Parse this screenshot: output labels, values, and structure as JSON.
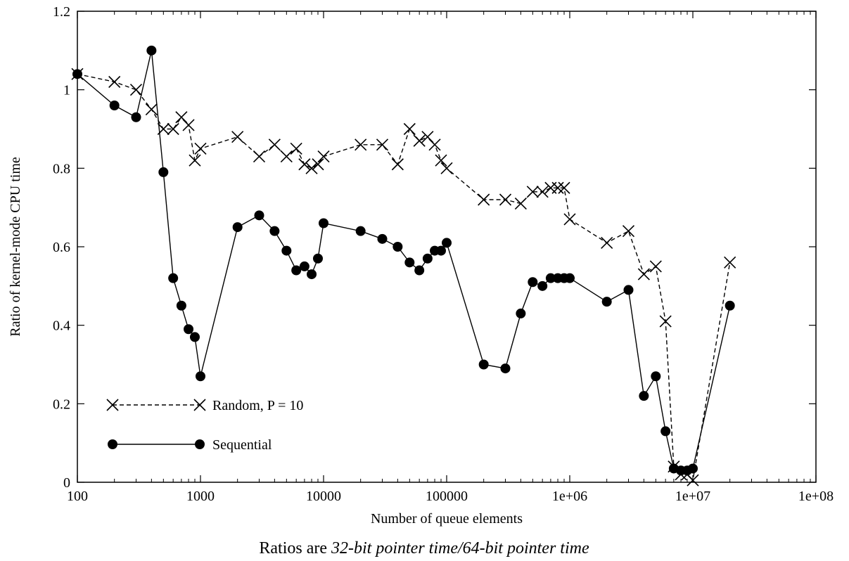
{
  "chart_data": {
    "type": "line",
    "xlabel": "Number of queue elements",
    "ylabel": "Ratio of kernel-mode CPU time",
    "caption_prefix": "Ratios are ",
    "caption_emphasis": "32-bit pointer time/64-bit pointer time",
    "x_scale": "log",
    "xlim": [
      100,
      100000000
    ],
    "ylim": [
      0,
      1.2
    ],
    "x_ticks": [
      100,
      1000,
      10000,
      100000,
      1000000,
      10000000,
      100000000
    ],
    "x_tick_labels": [
      "100",
      "1000",
      "10000",
      "100000",
      "1e+06",
      "1e+07",
      "1e+08"
    ],
    "y_ticks": [
      0,
      0.2,
      0.4,
      0.6,
      0.8,
      1,
      1.2
    ],
    "y_tick_labels": [
      "0",
      "0.2",
      "0.4",
      "0.6",
      "0.8",
      "1",
      "1.2"
    ],
    "grid": false,
    "legend_position": "bottom-left",
    "series": [
      {
        "name": "Random, P = 10",
        "line_style": "dashed",
        "marker": "cross",
        "color": "#000000",
        "x": [
          100,
          200,
          300,
          400,
          500,
          600,
          700,
          800,
          900,
          1000,
          2000,
          3000,
          4000,
          5000,
          6000,
          7000,
          8000,
          9000,
          10000,
          20000,
          30000,
          40000,
          50000,
          60000,
          70000,
          80000,
          90000,
          100000,
          200000,
          300000,
          400000,
          500000,
          600000,
          700000,
          800000,
          900000,
          1000000,
          2000000,
          3000000,
          4000000,
          5000000,
          6000000,
          7000000,
          8000000,
          9000000,
          10000000,
          20000000
        ],
        "y": [
          1.04,
          1.02,
          1.0,
          0.95,
          0.9,
          0.9,
          0.93,
          0.91,
          0.82,
          0.85,
          0.88,
          0.83,
          0.86,
          0.83,
          0.85,
          0.81,
          0.8,
          0.81,
          0.83,
          0.86,
          0.86,
          0.81,
          0.9,
          0.87,
          0.88,
          0.86,
          0.82,
          0.8,
          0.72,
          0.72,
          0.71,
          0.74,
          0.74,
          0.75,
          0.75,
          0.75,
          0.67,
          0.61,
          0.64,
          0.53,
          0.55,
          0.41,
          0.04,
          0.02,
          0.02,
          0.005,
          0.56
        ]
      },
      {
        "name": "Sequential",
        "line_style": "solid",
        "marker": "circle",
        "color": "#000000",
        "x": [
          100,
          200,
          300,
          400,
          500,
          600,
          700,
          800,
          900,
          1000,
          2000,
          3000,
          4000,
          5000,
          6000,
          7000,
          8000,
          9000,
          10000,
          20000,
          30000,
          40000,
          50000,
          60000,
          70000,
          80000,
          90000,
          100000,
          200000,
          300000,
          400000,
          500000,
          600000,
          700000,
          800000,
          900000,
          1000000,
          2000000,
          3000000,
          4000000,
          5000000,
          6000000,
          7000000,
          8000000,
          9000000,
          10000000,
          20000000
        ],
        "y": [
          1.04,
          0.96,
          0.93,
          1.1,
          0.79,
          0.52,
          0.45,
          0.39,
          0.37,
          0.27,
          0.65,
          0.68,
          0.64,
          0.59,
          0.54,
          0.55,
          0.53,
          0.57,
          0.66,
          0.64,
          0.62,
          0.6,
          0.56,
          0.54,
          0.57,
          0.59,
          0.59,
          0.61,
          0.3,
          0.29,
          0.43,
          0.51,
          0.5,
          0.52,
          0.52,
          0.52,
          0.52,
          0.46,
          0.49,
          0.22,
          0.27,
          0.13,
          0.035,
          0.03,
          0.03,
          0.035,
          0.45
        ]
      }
    ]
  }
}
